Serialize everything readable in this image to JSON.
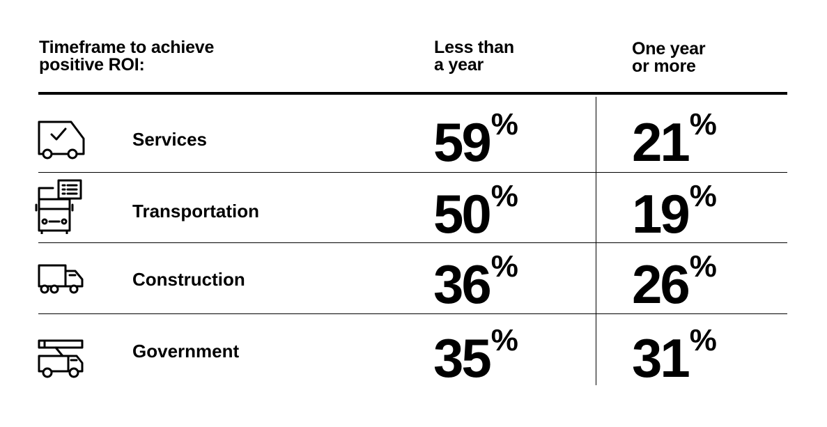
{
  "header": {
    "category_line1": "Timeframe to achieve",
    "category_line2": "positive ROI:",
    "col1_line1": "Less than",
    "col1_line2": "a year",
    "col2_line1": "One year",
    "col2_line2": "or more"
  },
  "rows": [
    {
      "label": "Services",
      "icon": "van-check-icon",
      "less_than_year": "59",
      "one_year_or_more": "21",
      "unit": "%"
    },
    {
      "label": "Transportation",
      "icon": "bus-icon",
      "less_than_year": "50",
      "one_year_or_more": "19",
      "unit": "%"
    },
    {
      "label": "Construction",
      "icon": "truck-icon",
      "less_than_year": "36",
      "one_year_or_more": "26",
      "unit": "%"
    },
    {
      "label": "Government",
      "icon": "crane-truck-icon",
      "less_than_year": "35",
      "one_year_or_more": "31",
      "unit": "%"
    }
  ],
  "chart_data": {
    "type": "table",
    "title": "Timeframe to achieve positive ROI:",
    "columns": [
      "Less than a year",
      "One year or more"
    ],
    "categories": [
      "Services",
      "Transportation",
      "Construction",
      "Government"
    ],
    "series": [
      {
        "name": "Less than a year",
        "values": [
          59,
          50,
          36,
          35
        ]
      },
      {
        "name": "One year or more",
        "values": [
          21,
          19,
          26,
          31
        ]
      }
    ],
    "unit": "%"
  }
}
